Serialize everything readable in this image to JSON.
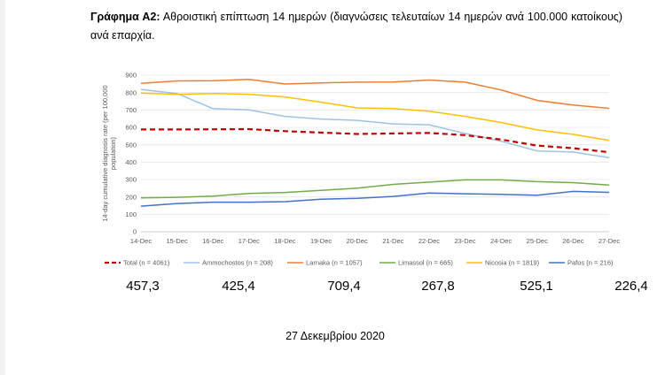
{
  "caption": {
    "label": "Γράφημα Α2:",
    "text": "Αθροιστική επίπτωση 14 ημερών (διαγνώσεις τελευταίων 14 ημερών ανά 100.000 κατοίκους) ανά επαρχία."
  },
  "chart_data": {
    "type": "line",
    "ylabel": "14-day cumulative diagnosis rate (per 100,000 population)",
    "xlabel": "",
    "ylim": [
      0,
      900
    ],
    "yticks": [
      0,
      100,
      200,
      300,
      400,
      500,
      600,
      700,
      800,
      900
    ],
    "grid": true,
    "legend": "bottom",
    "categories": [
      "14-Dec",
      "15-Dec",
      "16-Dec",
      "17-Dec",
      "18-Dec",
      "19-Dec",
      "20-Dec",
      "21-Dec",
      "22-Dec",
      "23-Dec",
      "24-Dec",
      "25-Dec",
      "26-Dec",
      "27-Dec"
    ],
    "series": [
      {
        "name": "Total (n = 4061)",
        "color": "#c00000",
        "dashed": true,
        "values": [
          588,
          588,
          589,
          590,
          578,
          570,
          562,
          565,
          568,
          555,
          530,
          495,
          480,
          457.3
        ]
      },
      {
        "name": "Ammochostos (n = 208)",
        "color": "#9dc3e6",
        "dashed": false,
        "values": [
          818,
          795,
          708,
          700,
          663,
          648,
          640,
          620,
          615,
          565,
          520,
          465,
          458,
          425.4
        ]
      },
      {
        "name": "Larnaka (n = 1057)",
        "color": "#ed7d31",
        "dashed": false,
        "values": [
          853,
          867,
          868,
          876,
          849,
          856,
          860,
          861,
          872,
          860,
          815,
          755,
          728,
          709.4
        ]
      },
      {
        "name": "Limassol (n = 665)",
        "color": "#70ad47",
        "dashed": false,
        "values": [
          195,
          198,
          205,
          220,
          226,
          238,
          250,
          272,
          285,
          298,
          298,
          288,
          282,
          267.8
        ]
      },
      {
        "name": "Nicosia (n = 1819)",
        "color": "#ffc000",
        "dashed": false,
        "values": [
          797,
          790,
          795,
          790,
          775,
          745,
          712,
          708,
          693,
          663,
          628,
          585,
          560,
          525.1
        ]
      },
      {
        "name": "Pafos (n = 216)",
        "color": "#4472c4",
        "dashed": false,
        "values": [
          147,
          162,
          170,
          170,
          173,
          187,
          192,
          203,
          222,
          218,
          215,
          210,
          232,
          226.4
        ]
      }
    ]
  },
  "latest_values": [
    "457,3",
    "425,4",
    "709,4",
    "267,8",
    "525,1",
    "226,4"
  ],
  "date": "27 Δεκεμβρίου 2020"
}
